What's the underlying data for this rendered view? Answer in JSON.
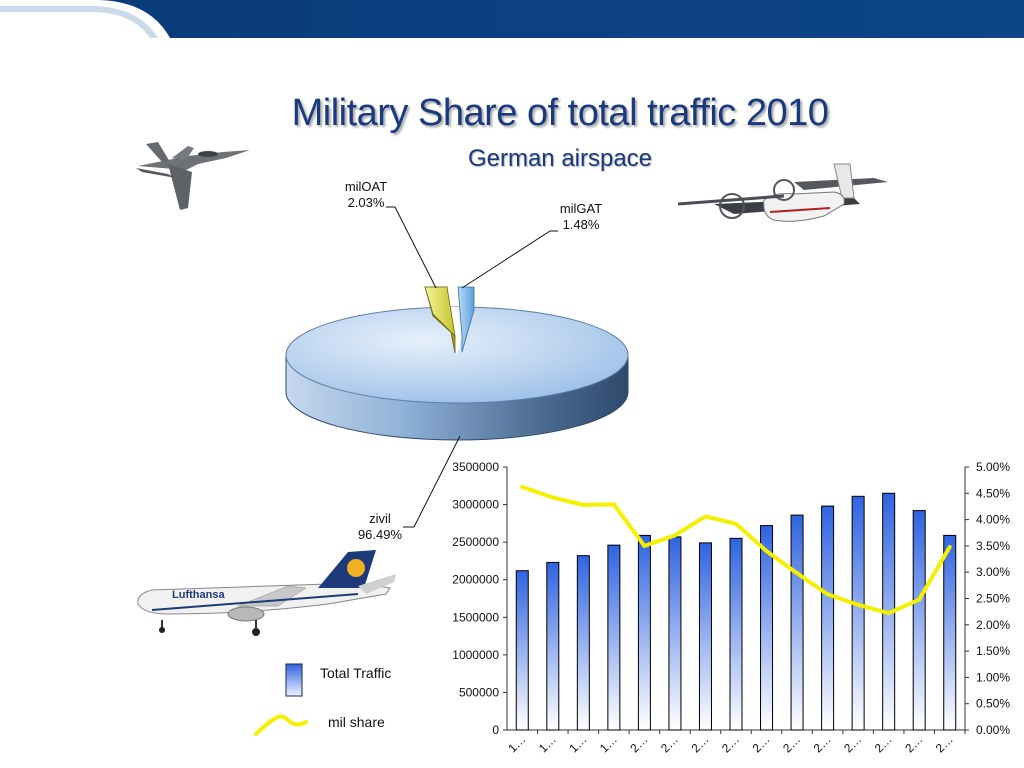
{
  "slide": {
    "title": "Military Share of total traffic 2010",
    "subtitle": "German airspace",
    "header_color": "#0d3d7e"
  },
  "aircraft": {
    "fighter": "fighter-jet-icon",
    "transport": "transport-plane-icon",
    "airliner": "airliner-icon",
    "airliner_livery": "Lufthansa"
  },
  "chart_data": [
    {
      "type": "pie",
      "style": "3d",
      "slices": [
        {
          "label": "zivil",
          "value": 96.49,
          "display": "96.49%",
          "color": "#b8d2ee"
        },
        {
          "label": "milOAT",
          "value": 2.03,
          "display": "2.03%",
          "color": "#e8e66a"
        },
        {
          "label": "milGAT",
          "value": 1.48,
          "display": "1.48%",
          "color": "#8ec3ee"
        }
      ]
    },
    {
      "type": "bar+line",
      "categories": [
        "1…",
        "1…",
        "1…",
        "1…",
        "2…",
        "2…",
        "2…",
        "2…",
        "2…",
        "2…",
        "2…",
        "2…",
        "2…",
        "2…",
        "2…"
      ],
      "series": [
        {
          "name": "Total Traffic",
          "type": "bar",
          "axis": "left",
          "color": "#3a6fe0",
          "values": [
            2120000,
            2230000,
            2320000,
            2460000,
            2590000,
            2570000,
            2490000,
            2550000,
            2720000,
            2860000,
            2980000,
            3110000,
            3150000,
            2920000,
            2590000
          ]
        },
        {
          "name": "mil share",
          "type": "line",
          "axis": "right",
          "color": "#f4f000",
          "values": [
            4.62,
            4.42,
            4.28,
            4.29,
            3.5,
            3.7,
            4.06,
            3.92,
            3.4,
            2.98,
            2.58,
            2.38,
            2.22,
            2.48,
            3.48
          ]
        }
      ],
      "y_left": {
        "ylim": [
          0,
          3500000
        ],
        "ticks": [
          "0",
          "500000",
          "1000000",
          "1500000",
          "2000000",
          "2500000",
          "3000000",
          "3500000"
        ]
      },
      "y_right": {
        "ylim": [
          0,
          5
        ],
        "ticks": [
          "0.00%",
          "0.50%",
          "1.00%",
          "1.50%",
          "2.00%",
          "2.50%",
          "3.00%",
          "3.50%",
          "4.00%",
          "4.50%",
          "5.00%"
        ]
      },
      "grid": false,
      "legend_placement": "bottom-left"
    }
  ]
}
